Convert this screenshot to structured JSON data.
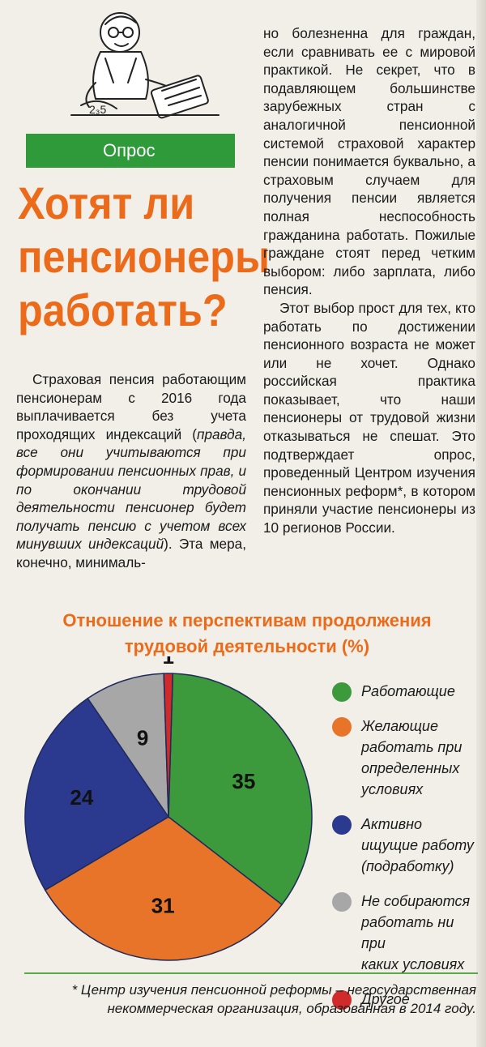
{
  "section_label": "Опрос",
  "headline": [
    "Хотят ли",
    "пенсионеры",
    "работать?"
  ],
  "left_column": {
    "p1_lines": [
      "Страховая пенсия рабо-",
      "тающим пенсионерам с",
      "2016 года выплачивается",
      "без учета проходящих индекса-",
      "ций ("
    ],
    "p1_plain_start": "Страховая пенсия работающим пенсионерам с 2016 года выплачивается без учета проходящих индексаций (",
    "p1_italic": "правда, все они учитываются при формировании пенсионных прав, и по окончании трудовой деятельности пенсионер будет получать пенсию с учетом всех минувших индексаций",
    "p1_plain_end": "). Эта мера, конечно, минималь-"
  },
  "right_column": {
    "p1": "но болезненна для граждан, если сравнивать ее с мировой практикой. Не секрет, что в подавляющем большинстве зарубежных стран с аналогичной пенсионной системой страховой характер пенсии понимается буквально, а страховым случаем для получения пенсии является полная неспособность гражданина работать. Пожилые граждане стоят перед четким выбором: либо зарплата, либо пенсия.",
    "p2": "Этот выбор прост для тех, кто работать по достижении пенсионного возраста не может или не хочет. Однако российская практика показывает, что наши пенсионеры от трудовой жизни отказываться не спешат. Это подтверждает опрос, проведенный Центром изучения пенсионных реформ*, в котором приняли участие пенсионеры из 10 регионов России."
  },
  "chart_data": {
    "type": "pie",
    "title": [
      "Отношение к перспективам продолжения",
      "трудовой деятельности (%)"
    ],
    "categories": [
      "Работающие",
      "Желающие работать при определенных условиях",
      "Активно ищущие работу (подработку)",
      "Не собираются работать ни при каких условиях",
      "Другое"
    ],
    "values": [
      35,
      31,
      24,
      9,
      1
    ],
    "colors": [
      "#3d9a3c",
      "#e8742a",
      "#2b3a8f",
      "#a7a7a7",
      "#d02a2a"
    ],
    "legend_placement": "right"
  },
  "legend_lines": [
    [
      "Работающие"
    ],
    [
      "Желающие",
      "работать при",
      "определенных",
      "условиях"
    ],
    [
      "Активно",
      "ищущие работу",
      "(подработку)"
    ],
    [
      "Не собираются",
      "работать ни при",
      "каких условиях"
    ],
    [
      "Другое"
    ]
  ],
  "footnote": "* Центр изучения пенсионной реформы – негосударственная некоммерческая организация, образованная в 2014 году."
}
